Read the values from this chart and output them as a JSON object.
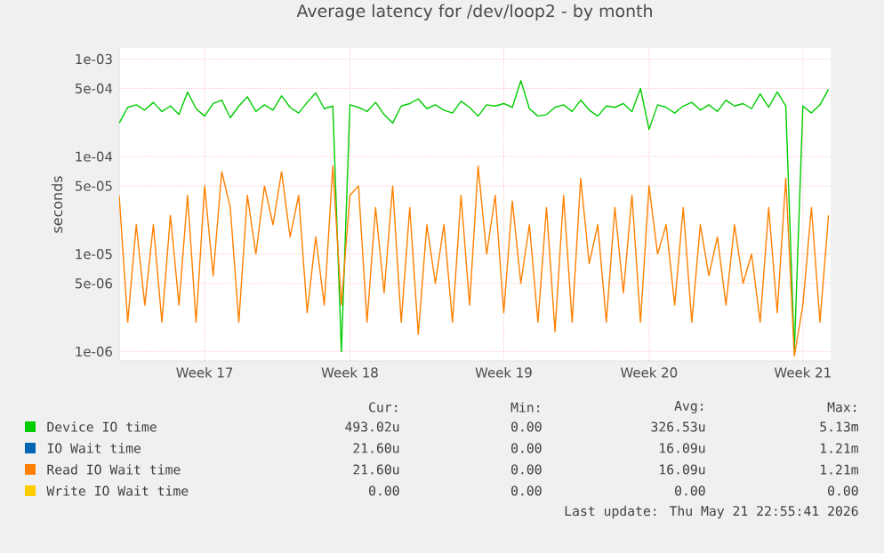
{
  "chart_data": {
    "type": "line",
    "title": "Average latency for /dev/loop2 - by month",
    "ylabel": "seconds",
    "log": true,
    "grid": true,
    "legend": "bottom",
    "marker": "none",
    "line_style": "solid",
    "ylim": [
      8e-07,
      0.0013
    ],
    "yticks": [
      {
        "value": 0.001,
        "label": "1e-03"
      },
      {
        "value": 0.0005,
        "label": "5e-04"
      },
      {
        "value": 0.0001,
        "label": "1e-04"
      },
      {
        "value": 5e-05,
        "label": "5e-05"
      },
      {
        "value": 1e-05,
        "label": "1e-05"
      },
      {
        "value": 5e-06,
        "label": "5e-06"
      },
      {
        "value": 1e-06,
        "label": "1e-06"
      }
    ],
    "categories": [
      null,
      null,
      null,
      null,
      null,
      null,
      null,
      null,
      null,
      null,
      "Week 17",
      null,
      null,
      null,
      null,
      null,
      null,
      null,
      null,
      null,
      null,
      null,
      null,
      null,
      null,
      null,
      null,
      "Week 18",
      null,
      null,
      null,
      null,
      null,
      null,
      null,
      null,
      null,
      null,
      null,
      null,
      null,
      null,
      null,
      null,
      null,
      "Week 19",
      null,
      null,
      null,
      null,
      null,
      null,
      null,
      null,
      null,
      null,
      null,
      null,
      null,
      null,
      null,
      null,
      "Week 20",
      null,
      null,
      null,
      null,
      null,
      null,
      null,
      null,
      null,
      null,
      null,
      null,
      null,
      null,
      null,
      null,
      null,
      "Week 21",
      null,
      null,
      null
    ],
    "series": [
      {
        "name": "Device IO time",
        "color": "#00cc00",
        "values": [
          0.00022,
          0.00032,
          0.00034,
          0.0003,
          0.00036,
          0.00029,
          0.00033,
          0.00027,
          0.00046,
          0.00031,
          0.00026,
          0.00035,
          0.00038,
          0.00025,
          0.00033,
          0.00041,
          0.00029,
          0.00034,
          0.0003,
          0.00042,
          0.00032,
          0.00028,
          0.00036,
          0.00045,
          0.00031,
          0.00033,
          1e-06,
          0.00034,
          0.00032,
          0.00029,
          0.00036,
          0.00027,
          0.00022,
          0.00033,
          0.00035,
          0.00039,
          0.00031,
          0.00034,
          0.0003,
          0.00028,
          0.00037,
          0.00032,
          0.00026,
          0.00034,
          0.00033,
          0.00035,
          0.00032,
          0.0006,
          0.00031,
          0.00026,
          0.00027,
          0.00032,
          0.00034,
          0.00029,
          0.00038,
          0.0003,
          0.00026,
          0.00033,
          0.00032,
          0.00035,
          0.00029,
          0.0005,
          0.00019,
          0.00034,
          0.00032,
          0.00028,
          0.00033,
          0.00036,
          0.0003,
          0.00034,
          0.00029,
          0.00038,
          0.00033,
          0.00035,
          0.00031,
          0.00044,
          0.00032,
          0.00046,
          0.00033,
          1e-06,
          0.00033,
          0.00028,
          0.00034,
          0.00049
        ]
      },
      {
        "name": "IO Wait time",
        "color": "#0066b3",
        "values": [
          null,
          null,
          null,
          null,
          null,
          null,
          null,
          null,
          null,
          null,
          null,
          null,
          null,
          null,
          null,
          null,
          null,
          null,
          null,
          null,
          null,
          null,
          null,
          null,
          null,
          null,
          null,
          null,
          null,
          null,
          null,
          null,
          null,
          null,
          null,
          null,
          null,
          null,
          null,
          null,
          null,
          null,
          null,
          null,
          null,
          null,
          null,
          null,
          null,
          null,
          null,
          null,
          null,
          null,
          null,
          null,
          null,
          null,
          null,
          null,
          null,
          null,
          null,
          null,
          null,
          null,
          null,
          null,
          null,
          null,
          null,
          null,
          null,
          null,
          null,
          null,
          null,
          null,
          null,
          null,
          null,
          null,
          null,
          null
        ]
      },
      {
        "name": "Read IO Wait time",
        "color": "#ff8000",
        "values": [
          4e-05,
          2e-06,
          2e-05,
          3e-06,
          2e-05,
          2e-06,
          2.5e-05,
          3e-06,
          4e-05,
          2e-06,
          5e-05,
          6e-06,
          7e-05,
          3e-05,
          2e-06,
          4e-05,
          1e-05,
          5e-05,
          2e-05,
          7e-05,
          1.5e-05,
          4e-05,
          2.5e-06,
          1.5e-05,
          3e-06,
          8e-05,
          3e-06,
          4e-05,
          5e-05,
          2e-06,
          3e-05,
          4e-06,
          5e-05,
          2e-06,
          3e-05,
          1.5e-06,
          2e-05,
          5e-06,
          2e-05,
          2e-06,
          4e-05,
          3e-06,
          8e-05,
          1e-05,
          4e-05,
          2.5e-06,
          3.5e-05,
          5e-06,
          2e-05,
          2e-06,
          3e-05,
          1.6e-06,
          4e-05,
          2e-06,
          6e-05,
          8e-06,
          2e-05,
          2e-06,
          3e-05,
          4e-06,
          4e-05,
          2e-06,
          5e-05,
          1e-05,
          2e-05,
          3e-06,
          3e-05,
          2e-06,
          2e-05,
          6e-06,
          1.5e-05,
          3e-06,
          2e-05,
          5e-06,
          1e-05,
          2e-06,
          3e-05,
          2.5e-06,
          6e-05,
          9e-07,
          3e-06,
          3e-05,
          2e-06,
          2.5e-05
        ]
      },
      {
        "name": "Write IO Wait time",
        "color": "#ffcc00",
        "values": [
          null,
          null,
          null,
          null,
          null,
          null,
          null,
          null,
          null,
          null,
          null,
          null,
          null,
          null,
          null,
          null,
          null,
          null,
          null,
          null,
          null,
          null,
          null,
          null,
          null,
          null,
          null,
          null,
          null,
          null,
          null,
          null,
          null,
          null,
          null,
          null,
          null,
          null,
          null,
          null,
          null,
          null,
          null,
          null,
          null,
          null,
          null,
          null,
          null,
          null,
          null,
          null,
          null,
          null,
          null,
          null,
          null,
          null,
          null,
          null,
          null,
          null,
          null,
          null,
          null,
          null,
          null,
          null,
          null,
          null,
          null,
          null,
          null,
          null,
          null,
          null,
          null,
          null,
          null,
          null,
          null,
          null,
          null,
          null
        ]
      }
    ],
    "annotations": [
      "Cur:",
      "Min:",
      "Avg:",
      "Max:",
      "493.02u",
      "0.00",
      "326.53u",
      "5.13m",
      "21.60u",
      "0.00",
      "16.09u",
      "1.21m",
      "21.60u",
      "0.00",
      "16.09u",
      "1.21m",
      "0.00",
      "0.00",
      "0.00",
      "0.00",
      "Last update: Thu May 21 22:55:41 2026"
    ]
  }
}
